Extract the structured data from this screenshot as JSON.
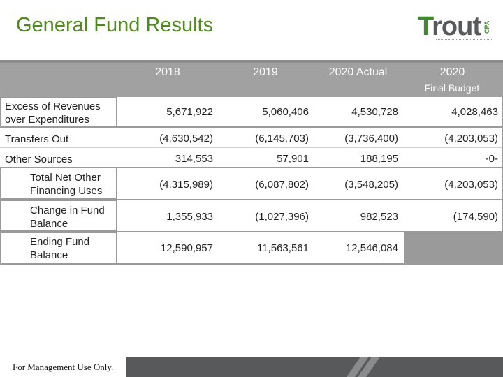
{
  "title": "General Fund Results",
  "logo": {
    "word_first": "T",
    "word_rest": "rout",
    "suffix": "CPA"
  },
  "columns": [
    {
      "label": "2018",
      "sub": ""
    },
    {
      "label": "2019",
      "sub": ""
    },
    {
      "label": "2020 Actual",
      "sub": ""
    },
    {
      "label": "2020",
      "sub": "Final Budget"
    }
  ],
  "rows": [
    {
      "label": "Excess of Revenues over Expenditures",
      "values": [
        "5,671,922",
        "5,060,406",
        "4,530,728",
        "4,028,463"
      ]
    },
    {
      "label": "Transfers Out",
      "values": [
        "(4,630,542)",
        "(6,145,703)",
        "(3,736,400)",
        "(4,203,053)"
      ]
    },
    {
      "label": "Other Sources",
      "values": [
        "314,553",
        "57,901",
        "188,195",
        "-0-"
      ]
    },
    {
      "label": "Total Net Other Financing Uses",
      "values": [
        "(4,315,989)",
        "(6,087,802)",
        "(3,548,205)",
        "(4,203,053)"
      ]
    },
    {
      "label": "Change in Fund Balance",
      "values": [
        "1,355,933",
        "(1,027,396)",
        "982,523",
        "(174,590)"
      ]
    },
    {
      "label": "Ending Fund Balance",
      "values": [
        "12,590,957",
        "11,563,561",
        "12,546,084",
        ""
      ]
    }
  ],
  "footer": "For Management Use Only.",
  "colors": {
    "title": "#4f8a1f",
    "header_fill": "#a1a1a1",
    "border": "#9a9a9a",
    "footer_bar": "#58595b"
  }
}
